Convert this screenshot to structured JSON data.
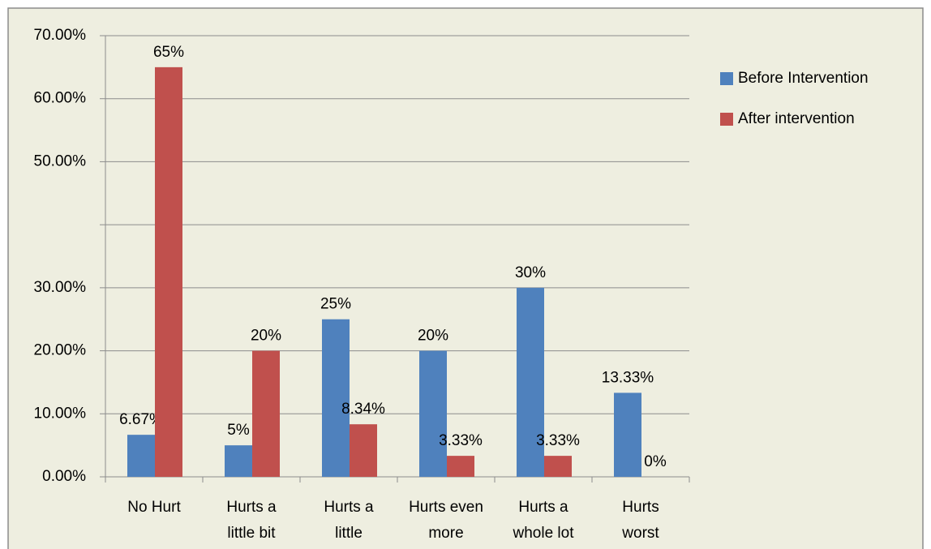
{
  "chart_data": {
    "type": "bar",
    "categories": [
      "No Hurt",
      "Hurts a little bit",
      "Hurts a little more",
      "Hurts even more",
      "Hurts a whole lot",
      "Hurts worst"
    ],
    "series": [
      {
        "name": "Before Intervention",
        "color": "#4f81bd",
        "values": [
          6.67,
          5,
          25,
          20,
          30,
          13.33
        ],
        "value_labels": [
          "6.67%",
          "5%",
          "25%",
          "20%",
          "30%",
          "13.33%"
        ]
      },
      {
        "name": "After intervention",
        "color": "#c0504d",
        "values": [
          65,
          20,
          8.34,
          3.33,
          3.33,
          0
        ],
        "value_labels": [
          "65%",
          "20%",
          "8.34%",
          "3.33%",
          "3.33%",
          "0%"
        ]
      }
    ],
    "ylim": [
      0,
      70
    ],
    "yticks": [
      {
        "value": 0,
        "label": "0.00%"
      },
      {
        "value": 10,
        "label": "10.00%"
      },
      {
        "value": 20,
        "label": "20.00%"
      },
      {
        "value": 30,
        "label": "30.00%"
      },
      {
        "value": 40,
        "label": null
      },
      {
        "value": 50,
        "label": "50.00%"
      },
      {
        "value": 60,
        "label": "60.00%"
      },
      {
        "value": 70,
        "label": "70.00%"
      }
    ],
    "grid": true,
    "legend": "right"
  }
}
